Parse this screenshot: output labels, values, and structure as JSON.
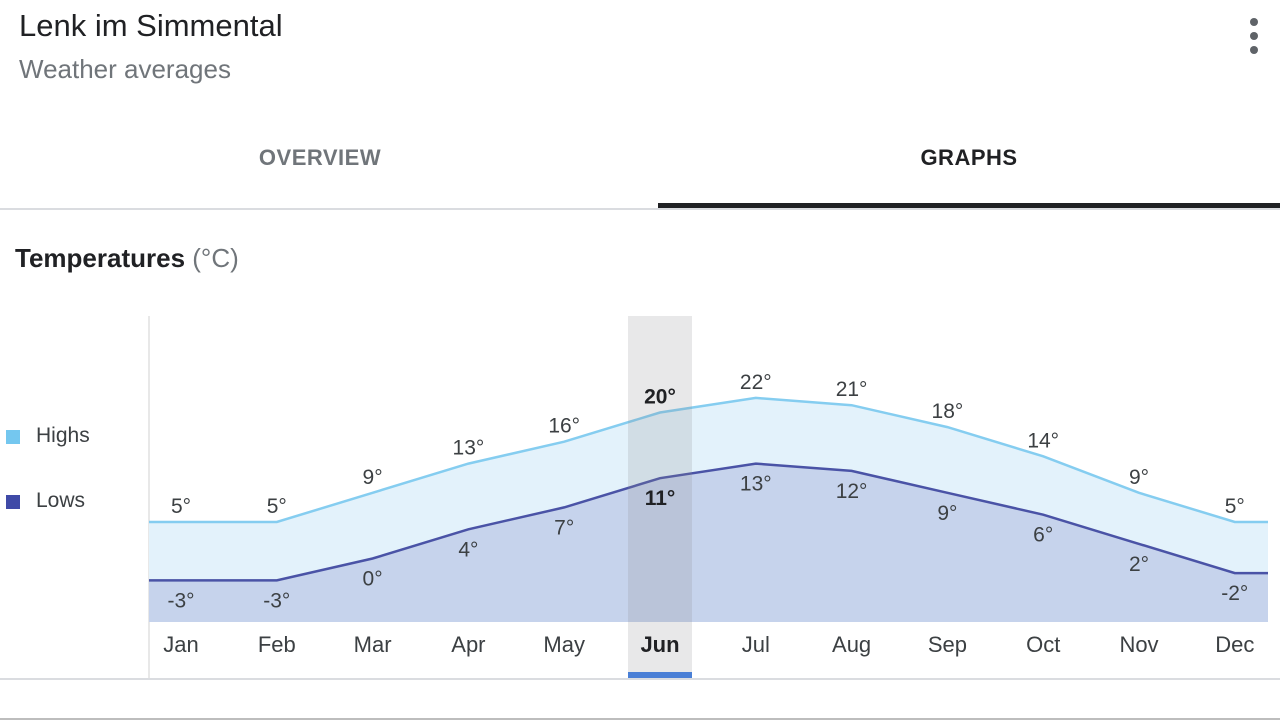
{
  "header": {
    "title": "Lenk im Simmental",
    "subtitle": "Weather averages",
    "more_icon": "more-vert-icon"
  },
  "tabs": [
    {
      "label": "OVERVIEW",
      "selected": false
    },
    {
      "label": "GRAPHS",
      "selected": true
    }
  ],
  "section": {
    "title": "Temperatures",
    "unit": "(°C)"
  },
  "legend": [
    {
      "label": "Highs",
      "color": "#74c7ef"
    },
    {
      "label": "Lows",
      "color": "#3f4aa7"
    }
  ],
  "colors": {
    "highs_line": "#85cdf0",
    "highs_fill": "#e3f2fb",
    "lows_line": "#4a53a6",
    "lows_fill": "#c6d3ec",
    "selected_column": "#8e8e93",
    "selected_indicator": "#4a7fd6"
  },
  "chart_data": {
    "type": "area",
    "categories": [
      "Jan",
      "Feb",
      "Mar",
      "Apr",
      "May",
      "Jun",
      "Jul",
      "Aug",
      "Sep",
      "Oct",
      "Nov",
      "Dec"
    ],
    "series": [
      {
        "name": "Highs",
        "values": [
          5,
          5,
          9,
          13,
          16,
          20,
          22,
          21,
          18,
          14,
          9,
          5
        ],
        "labels": [
          "5°",
          "5°",
          "9°",
          "13°",
          "16°",
          "20°",
          "22°",
          "21°",
          "18°",
          "14°",
          "9°",
          "5°"
        ]
      },
      {
        "name": "Lows",
        "values": [
          -3,
          -3,
          0,
          4,
          7,
          11,
          13,
          12,
          9,
          6,
          2,
          -2
        ],
        "labels": [
          "-3°",
          "-3°",
          "0°",
          "4°",
          "7°",
          "11°",
          "13°",
          "12°",
          "9°",
          "6°",
          "2°",
          "-2°"
        ]
      }
    ],
    "selected": "Jun",
    "ylim": [
      -6,
      22
    ],
    "grid": false
  }
}
